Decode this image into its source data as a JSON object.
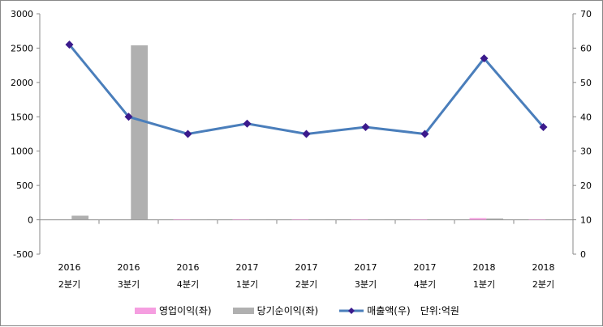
{
  "chart_data": {
    "type": "bar+line",
    "categories": [
      [
        "2016",
        "2분기"
      ],
      [
        "2016",
        "3분기"
      ],
      [
        "2016",
        "4분기"
      ],
      [
        "2017",
        "1분기"
      ],
      [
        "2017",
        "2분기"
      ],
      [
        "2017",
        "3분기"
      ],
      [
        "2017",
        "4분기"
      ],
      [
        "2018",
        "1분기"
      ],
      [
        "2018",
        "2분기"
      ]
    ],
    "left_axis": {
      "range": [
        -500,
        3000
      ],
      "ticks": [
        -500,
        0,
        500,
        1000,
        1500,
        2000,
        2500,
        3000
      ]
    },
    "right_axis": {
      "range": [
        0,
        70
      ],
      "ticks": [
        0,
        10,
        20,
        30,
        40,
        50,
        60,
        70
      ]
    },
    "series": [
      {
        "name": "영업이익(좌)",
        "type": "bar",
        "axis": "left",
        "color": "#f59ee0",
        "values": [
          0,
          0,
          8,
          8,
          8,
          8,
          8,
          25,
          8
        ]
      },
      {
        "name": "당기순이익(좌)",
        "type": "bar",
        "axis": "left",
        "color": "#b0b0b0",
        "values": [
          60,
          2540,
          8,
          8,
          8,
          8,
          0,
          20,
          8
        ]
      },
      {
        "name": "매출액(우)",
        "type": "line",
        "axis": "right",
        "color": "#4a7ebb",
        "marker_color": "#3b1a8c",
        "values": [
          61,
          40,
          35,
          38,
          35,
          37,
          35,
          57,
          37
        ]
      }
    ],
    "unit_note": "단위:억원",
    "grid": false,
    "legend": "bottom"
  }
}
